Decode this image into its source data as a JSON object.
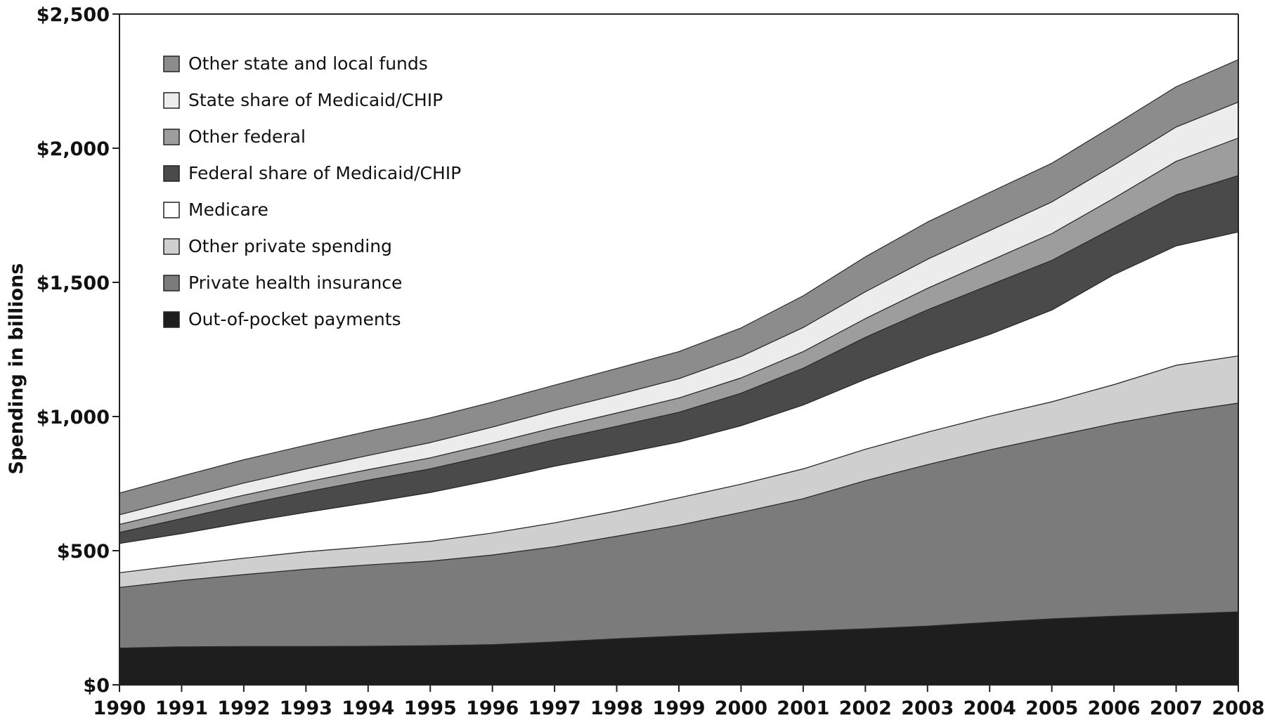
{
  "chart_data": {
    "type": "area",
    "stacked": true,
    "title": "",
    "xlabel": "",
    "ylabel": "Spending in billions",
    "x": [
      1990,
      1991,
      1992,
      1993,
      1994,
      1995,
      1996,
      1997,
      1998,
      1999,
      2000,
      2001,
      2002,
      2003,
      2004,
      2005,
      2006,
      2007,
      2008
    ],
    "x_tick_labels": [
      "1990",
      "1991",
      "1992",
      "1993",
      "1994",
      "1995",
      "1996",
      "1997",
      "1998",
      "1999",
      "2000",
      "2001",
      "2002",
      "2003",
      "2004",
      "2005",
      "2006",
      "2007",
      "2008"
    ],
    "ylim": [
      0,
      2500
    ],
    "y_ticks": [
      0,
      500,
      1000,
      1500,
      2000,
      2500
    ],
    "y_tick_labels": [
      "$0",
      "$500",
      "$1,000",
      "$1,500",
      "$2,000",
      "$2,500"
    ],
    "grid": false,
    "legend_position": "top-left",
    "series": [
      {
        "name": "Out-of-pocket payments",
        "color": "#1e1e1e",
        "values": [
          137,
          142,
          143,
          143,
          144,
          146,
          150,
          160,
          172,
          182,
          191,
          200,
          209,
          219,
          233,
          246,
          256,
          264,
          272
        ]
      },
      {
        "name": "Private health insurance",
        "color": "#7b7b7b",
        "values": [
          226,
          247,
          268,
          288,
          303,
          315,
          334,
          355,
          382,
          413,
          452,
          494,
          552,
          602,
          643,
          679,
          718,
          752,
          778
        ]
      },
      {
        "name": "Other private spending",
        "color": "#cfcfcf",
        "values": [
          55,
          57,
          61,
          65,
          68,
          74,
          82,
          89,
          94,
          102,
          105,
          111,
          117,
          121,
          125,
          130,
          145,
          175,
          176
        ]
      },
      {
        "name": "Medicare",
        "color": "#ffffff",
        "values": [
          109,
          118,
          133,
          147,
          164,
          182,
          198,
          211,
          211,
          208,
          218,
          238,
          261,
          285,
          305,
          342,
          410,
          445,
          462
        ]
      },
      {
        "name": "Federal share of Medicaid/CHIP",
        "color": "#4a4a4a",
        "values": [
          41,
          56,
          67,
          76,
          84,
          88,
          94,
          99,
          105,
          111,
          121,
          137,
          156,
          171,
          184,
          185,
          175,
          190,
          210
        ]
      },
      {
        "name": "Other federal",
        "color": "#9d9d9d",
        "values": [
          30,
          33,
          35,
          37,
          39,
          41,
          43,
          45,
          49,
          53,
          57,
          62,
          70,
          80,
          90,
          100,
          110,
          125,
          140
        ]
      },
      {
        "name": "State share of Medicaid/CHIP",
        "color": "#ececec",
        "values": [
          36,
          40,
          45,
          49,
          53,
          57,
          60,
          64,
          68,
          72,
          80,
          90,
          100,
          108,
          113,
          118,
          123,
          128,
          134
        ]
      },
      {
        "name": "Other state and local funds",
        "color": "#8c8c8c",
        "values": [
          81,
          85,
          87,
          88,
          90,
          92,
          93,
          94,
          98,
          101,
          106,
          118,
          130,
          139,
          142,
          144,
          148,
          150,
          158
        ]
      }
    ],
    "legend_order": [
      "Other state and local funds",
      "State share of Medicaid/CHIP",
      "Other federal",
      "Federal share of Medicaid/CHIP",
      "Medicare",
      "Other private spending",
      "Private health insurance",
      "Out-of-pocket payments"
    ]
  }
}
